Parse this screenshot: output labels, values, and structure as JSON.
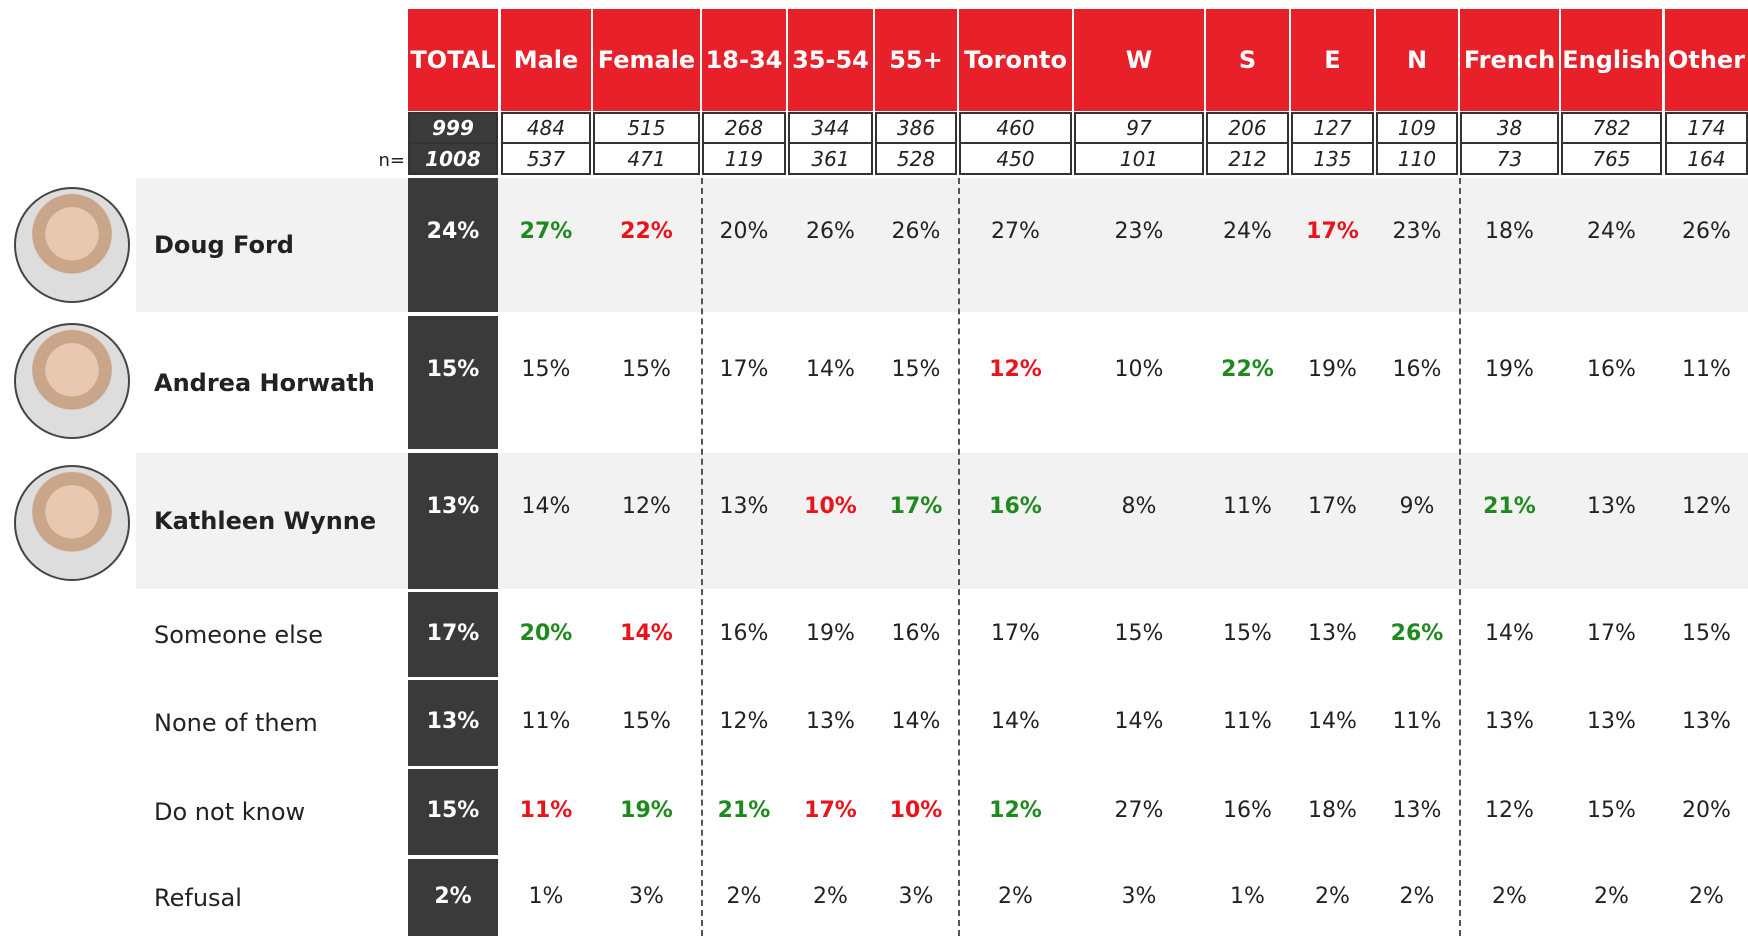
{
  "table": {
    "columns": [
      "TOTAL",
      "Male",
      "Female",
      "18-34",
      "35-54",
      "55+",
      "Toronto",
      "W",
      "S",
      "E",
      "N",
      "French",
      "English",
      "Other"
    ],
    "weighted_n": [
      "999",
      "484",
      "515",
      "268",
      "344",
      "386",
      "460",
      "97",
      "206",
      "127",
      "109",
      "38",
      "782",
      "174"
    ],
    "n_label": "n=",
    "unweighted_n": [
      "1008",
      "537",
      "471",
      "119",
      "361",
      "528",
      "450",
      "101",
      "212",
      "135",
      "110",
      "73",
      "765",
      "164"
    ],
    "rows": [
      {
        "label": "Doug Ford",
        "bold": true,
        "shaded": true,
        "photo": true,
        "values": [
          "24%",
          "27%",
          "22%",
          "20%",
          "26%",
          "26%",
          "27%",
          "23%",
          "24%",
          "17%",
          "23%",
          "18%",
          "24%",
          "26%"
        ],
        "green": [
          1
        ],
        "red": [
          2,
          9
        ]
      },
      {
        "label": "Andrea Horwath",
        "bold": true,
        "shaded": false,
        "photo": true,
        "values": [
          "15%",
          "15%",
          "15%",
          "17%",
          "14%",
          "15%",
          "12%",
          "10%",
          "22%",
          "19%",
          "16%",
          "19%",
          "16%",
          "11%"
        ],
        "green": [
          8
        ],
        "red": [
          6
        ]
      },
      {
        "label": "Kathleen Wynne",
        "bold": true,
        "shaded": true,
        "photo": true,
        "values": [
          "13%",
          "14%",
          "12%",
          "13%",
          "10%",
          "17%",
          "16%",
          "8%",
          "11%",
          "17%",
          "9%",
          "21%",
          "13%",
          "12%"
        ],
        "green": [
          5,
          6,
          11
        ],
        "red": [
          4
        ]
      },
      {
        "label": "Someone else",
        "bold": false,
        "shaded": false,
        "photo": false,
        "values": [
          "17%",
          "20%",
          "14%",
          "16%",
          "19%",
          "16%",
          "17%",
          "15%",
          "15%",
          "13%",
          "26%",
          "14%",
          "17%",
          "15%"
        ],
        "green": [
          1,
          10
        ],
        "red": [
          2
        ]
      },
      {
        "label": "None of them",
        "bold": false,
        "shaded": false,
        "photo": false,
        "values": [
          "13%",
          "11%",
          "15%",
          "12%",
          "13%",
          "14%",
          "14%",
          "14%",
          "11%",
          "14%",
          "11%",
          "13%",
          "13%",
          "13%"
        ],
        "green": [],
        "red": []
      },
      {
        "label": "Do not know",
        "bold": false,
        "shaded": false,
        "photo": false,
        "values": [
          "15%",
          "11%",
          "19%",
          "21%",
          "17%",
          "10%",
          "12%",
          "27%",
          "16%",
          "18%",
          "13%",
          "12%",
          "15%",
          "20%"
        ],
        "green": [
          2,
          3,
          6
        ],
        "red": [
          1,
          4,
          5
        ]
      },
      {
        "label": "Refusal",
        "bold": false,
        "shaded": false,
        "photo": false,
        "values": [
          "2%",
          "1%",
          "3%",
          "2%",
          "2%",
          "3%",
          "2%",
          "3%",
          "1%",
          "2%",
          "2%",
          "2%",
          "2%",
          "2%"
        ],
        "green": [],
        "red": []
      }
    ]
  }
}
